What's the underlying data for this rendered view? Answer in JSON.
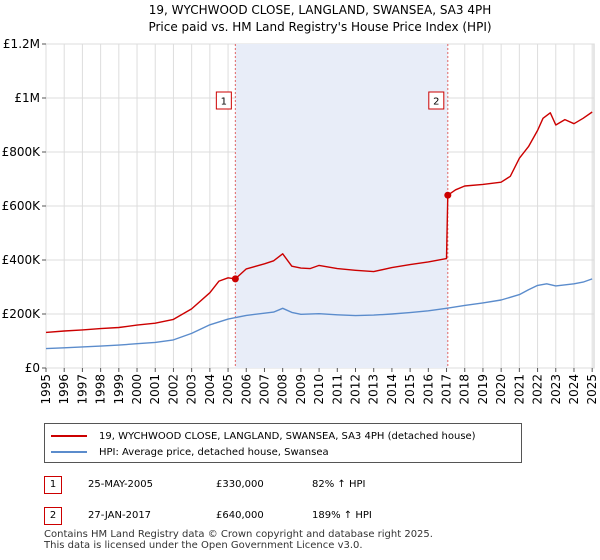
{
  "chart_data": {
    "type": "line",
    "title": "19, WYCHWOOD CLOSE, LANGLAND, SWANSEA, SA3 4PH",
    "subtitle": "Price paid vs. HM Land Registry's House Price Index (HPI)",
    "xlim": [
      1995,
      2025.1
    ],
    "ylim": [
      0,
      1200000
    ],
    "y_ticks": [
      {
        "value": 0,
        "label": "£0"
      },
      {
        "value": 200000,
        "label": "£200K"
      },
      {
        "value": 400000,
        "label": "£400K"
      },
      {
        "value": 600000,
        "label": "£600K"
      },
      {
        "value": 800000,
        "label": "£800K"
      },
      {
        "value": 1000000,
        "label": "£1M"
      },
      {
        "value": 1200000,
        "label": "£1.2M"
      }
    ],
    "x_ticks": [
      "1995",
      "1996",
      "1997",
      "1998",
      "1999",
      "2000",
      "2001",
      "2002",
      "2003",
      "2004",
      "2005",
      "2006",
      "2007",
      "2008",
      "2009",
      "2010",
      "2011",
      "2012",
      "2013",
      "2014",
      "2015",
      "2016",
      "2017",
      "2018",
      "2019",
      "2020",
      "2021",
      "2022",
      "2023",
      "2024",
      "2025"
    ],
    "shaded_region": [
      2005.4,
      2017.07
    ],
    "markers": [
      {
        "label": "1",
        "x": 2005.4,
        "value": 330000
      },
      {
        "label": "2",
        "x": 2017.07,
        "value": 640000
      }
    ],
    "series": [
      {
        "name": "19, WYCHWOOD CLOSE, LANGLAND, SWANSEA, SA3 4PH (detached house)",
        "color": "#cc0000",
        "x": [
          1995,
          1996,
          1997,
          1998,
          1999,
          2000,
          2001,
          2002,
          2003,
          2004,
          2004.5,
          2005.0,
          2005.4,
          2006,
          2007,
          2007.5,
          2008,
          2008.5,
          2009,
          2009.5,
          2010,
          2011,
          2012,
          2013,
          2014,
          2015,
          2016,
          2017.0,
          2017.07,
          2017.5,
          2018,
          2019,
          2020,
          2020.5,
          2021,
          2021.5,
          2022,
          2022.3,
          2022.7,
          2023,
          2023.5,
          2024,
          2024.5,
          2025
        ],
        "values": [
          132000,
          137000,
          141000,
          146000,
          150000,
          159000,
          166000,
          180000,
          219000,
          279000,
          322000,
          334000,
          330000,
          367000,
          386000,
          397000,
          423000,
          377000,
          370000,
          368000,
          380000,
          368000,
          362000,
          357000,
          372000,
          383000,
          393000,
          405000,
          640000,
          660000,
          674000,
          680000,
          688000,
          710000,
          777000,
          820000,
          880000,
          925000,
          945000,
          900000,
          920000,
          905000,
          925000,
          948000
        ]
      },
      {
        "name": "HPI: Average price, detached house, Swansea",
        "color": "#5b8ccc",
        "x": [
          1995,
          1996,
          1997,
          1998,
          1999,
          2000,
          2001,
          2002,
          2003,
          2004,
          2005,
          2006,
          2007,
          2007.5,
          2008,
          2008.5,
          2009,
          2010,
          2011,
          2012,
          2013,
          2014,
          2015,
          2016,
          2017,
          2018,
          2019,
          2020,
          2021,
          2021.5,
          2022,
          2022.5,
          2023,
          2024,
          2024.5,
          2025
        ],
        "values": [
          72000,
          75000,
          78000,
          81000,
          85000,
          90000,
          95000,
          104000,
          128000,
          160000,
          181000,
          195000,
          203000,
          207000,
          221000,
          206000,
          199000,
          201000,
          197000,
          194000,
          196000,
          200000,
          205000,
          212000,
          221000,
          232000,
          241000,
          252000,
          272000,
          290000,
          306000,
          312000,
          304000,
          312000,
          318000,
          330000
        ]
      }
    ]
  },
  "legend": {
    "items": [
      {
        "label": "19, WYCHWOOD CLOSE, LANGLAND, SWANSEA, SA3 4PH (detached house)",
        "color": "#cc0000"
      },
      {
        "label": "HPI: Average price, detached house, Swansea",
        "color": "#5b8ccc"
      }
    ]
  },
  "sales": [
    {
      "num": "1",
      "date": "25-MAY-2005",
      "price": "£330,000",
      "hpi": "82% ↑ HPI"
    },
    {
      "num": "2",
      "date": "27-JAN-2017",
      "price": "£640,000",
      "hpi": "189% ↑ HPI"
    }
  ],
  "footer": {
    "line1": "Contains HM Land Registry data © Crown copyright and database right 2025.",
    "line2": "This data is licensed under the Open Government Licence v3.0."
  }
}
